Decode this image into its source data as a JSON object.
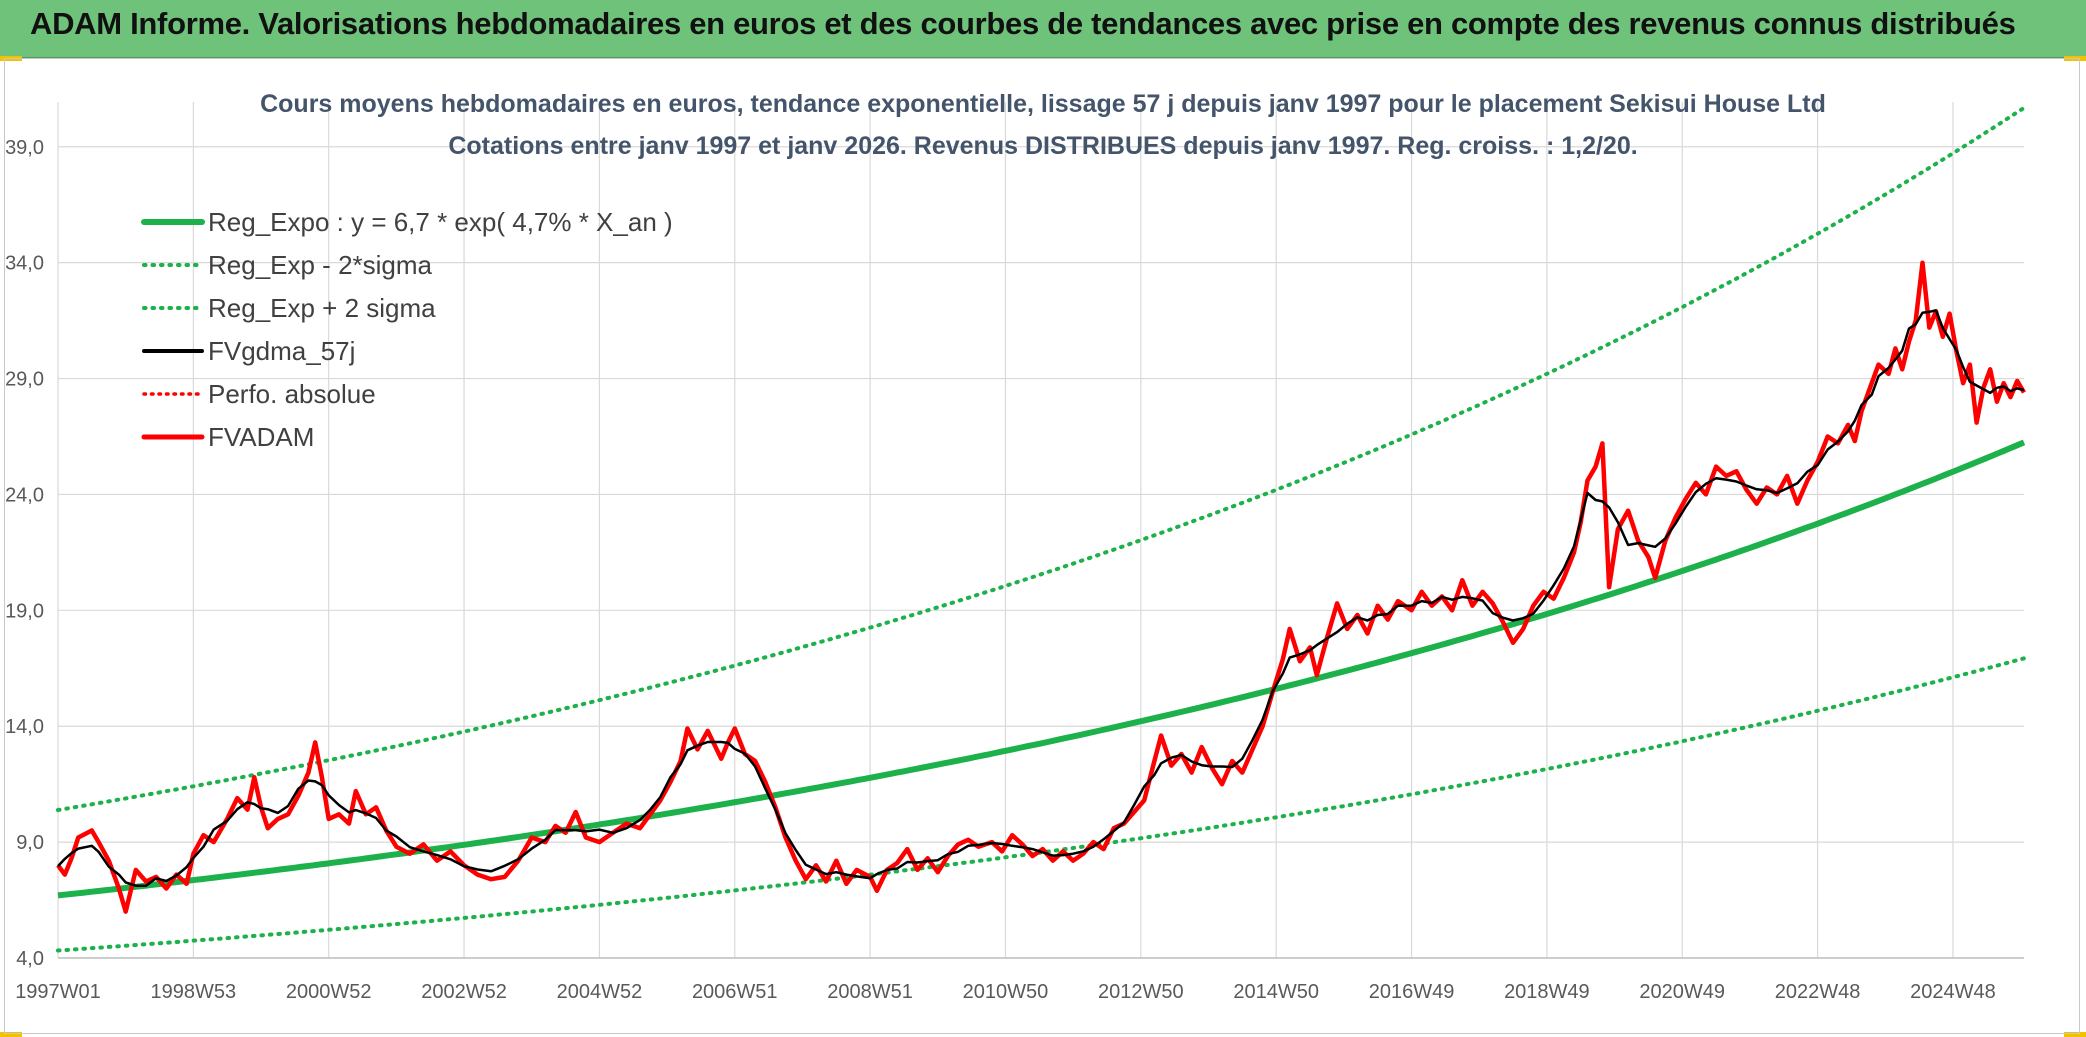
{
  "header": {
    "title": "ADAM Informe. Valorisations hebdomadaires en euros et des courbes de tendances avec prise en compte des revenus connus distribués"
  },
  "colors": {
    "header_bg": "#6fc27a",
    "trend": "#1db14b",
    "band": "#1db14b",
    "gdma": "#000000",
    "perf": "#ff0000",
    "fvadam": "#ff0000",
    "grid": "#d9d9d9",
    "title": "#44546a"
  },
  "chart_data": {
    "type": "line",
    "title": "Cours moyens hebdomadaires en euros, tendance exponentielle, lissage 57 j depuis janv 1997 pour le placement Sekisui House Ltd",
    "subtitle": "Cotations entre janv 1997 et janv 2026. Revenus DISTRIBUES depuis janv 1997. Reg. croiss. : 1,2/20.",
    "xlabel": "",
    "ylabel": "",
    "x_range": [
      1997.0,
      2026.05
    ],
    "ylim": [
      4.0,
      40.5
    ],
    "y_ticks": [
      "4,0",
      "9,0",
      "14,0",
      "19,0",
      "24,0",
      "29,0",
      "34,0",
      "39,0"
    ],
    "y_tick_values": [
      4,
      9,
      14,
      19,
      24,
      29,
      34,
      39
    ],
    "x_ticks": [
      "1997W01",
      "1998W53",
      "2000W52",
      "2002W52",
      "2004W52",
      "2006W51",
      "2008W51",
      "2010W50",
      "2012W50",
      "2014W50",
      "2016W49",
      "2018W49",
      "2020W49",
      "2022W48",
      "2024W48"
    ],
    "x_tick_values": [
      1997.0,
      1999.0,
      2001.0,
      2003.0,
      2005.0,
      2007.0,
      2009.0,
      2011.0,
      2013.0,
      2015.0,
      2017.0,
      2019.0,
      2021.0,
      2023.0,
      2025.0
    ],
    "grid": true,
    "legend_position": "top-left",
    "regression": {
      "a": 6.7,
      "rate": 0.047,
      "band_factor_low": 0.645,
      "band_factor_high": 1.55
    },
    "series": [
      {
        "name": "Reg_Expo : y = 6,7 * exp( 4,7% *  X_an )",
        "style": "solid-thick",
        "color": "#1db14b"
      },
      {
        "name": "Reg_Exp - 2*sigma",
        "style": "dotted",
        "color": "#1db14b"
      },
      {
        "name": "Reg_Exp + 2 sigma",
        "style": "dotted",
        "color": "#1db14b"
      },
      {
        "name": "FVgdma_57j",
        "style": "solid",
        "color": "#000000"
      },
      {
        "name": "Perfo. absolue",
        "style": "dotted",
        "color": "#ff0000"
      },
      {
        "name": "FVADAM",
        "style": "solid-thick",
        "color": "#ff0000",
        "points": [
          [
            1997.0,
            8.0
          ],
          [
            1997.1,
            7.6
          ],
          [
            1997.2,
            8.3
          ],
          [
            1997.3,
            9.2
          ],
          [
            1997.5,
            9.5
          ],
          [
            1997.6,
            9.0
          ],
          [
            1997.75,
            8.2
          ],
          [
            1997.9,
            7.0
          ],
          [
            1998.0,
            6.0
          ],
          [
            1998.15,
            7.8
          ],
          [
            1998.3,
            7.3
          ],
          [
            1998.45,
            7.5
          ],
          [
            1998.6,
            7.0
          ],
          [
            1998.75,
            7.6
          ],
          [
            1998.9,
            7.2
          ],
          [
            1999.0,
            8.5
          ],
          [
            1999.15,
            9.3
          ],
          [
            1999.3,
            9.0
          ],
          [
            1999.5,
            10.0
          ],
          [
            1999.65,
            10.9
          ],
          [
            1999.8,
            10.4
          ],
          [
            1999.9,
            11.8
          ],
          [
            2000.0,
            10.5
          ],
          [
            2000.1,
            9.6
          ],
          [
            2000.25,
            10.0
          ],
          [
            2000.4,
            10.2
          ],
          [
            2000.55,
            11.0
          ],
          [
            2000.7,
            12.0
          ],
          [
            2000.8,
            13.3
          ],
          [
            2000.9,
            11.8
          ],
          [
            2001.0,
            10.0
          ],
          [
            2001.15,
            10.2
          ],
          [
            2001.3,
            9.8
          ],
          [
            2001.4,
            11.2
          ],
          [
            2001.55,
            10.2
          ],
          [
            2001.7,
            10.5
          ],
          [
            2001.85,
            9.5
          ],
          [
            2002.0,
            8.8
          ],
          [
            2002.2,
            8.5
          ],
          [
            2002.4,
            8.9
          ],
          [
            2002.6,
            8.2
          ],
          [
            2002.8,
            8.6
          ],
          [
            2003.0,
            8.0
          ],
          [
            2003.2,
            7.6
          ],
          [
            2003.4,
            7.4
          ],
          [
            2003.6,
            7.5
          ],
          [
            2003.8,
            8.2
          ],
          [
            2004.0,
            9.2
          ],
          [
            2004.2,
            9.0
          ],
          [
            2004.35,
            9.7
          ],
          [
            2004.5,
            9.4
          ],
          [
            2004.65,
            10.3
          ],
          [
            2004.8,
            9.2
          ],
          [
            2005.0,
            9.0
          ],
          [
            2005.2,
            9.4
          ],
          [
            2005.4,
            9.8
          ],
          [
            2005.6,
            9.6
          ],
          [
            2005.75,
            10.2
          ],
          [
            2005.9,
            10.8
          ],
          [
            2006.05,
            11.6
          ],
          [
            2006.2,
            12.5
          ],
          [
            2006.3,
            13.9
          ],
          [
            2006.45,
            13.0
          ],
          [
            2006.6,
            13.8
          ],
          [
            2006.8,
            12.6
          ],
          [
            2006.9,
            13.3
          ],
          [
            2007.0,
            13.9
          ],
          [
            2007.15,
            12.8
          ],
          [
            2007.3,
            12.5
          ],
          [
            2007.45,
            11.6
          ],
          [
            2007.6,
            10.5
          ],
          [
            2007.75,
            9.2
          ],
          [
            2007.9,
            8.2
          ],
          [
            2008.05,
            7.4
          ],
          [
            2008.2,
            8.0
          ],
          [
            2008.35,
            7.3
          ],
          [
            2008.5,
            8.2
          ],
          [
            2008.65,
            7.2
          ],
          [
            2008.8,
            7.8
          ],
          [
            2009.0,
            7.5
          ],
          [
            2009.1,
            6.9
          ],
          [
            2009.25,
            7.8
          ],
          [
            2009.4,
            8.1
          ],
          [
            2009.55,
            8.7
          ],
          [
            2009.7,
            7.8
          ],
          [
            2009.85,
            8.3
          ],
          [
            2010.0,
            7.7
          ],
          [
            2010.15,
            8.4
          ],
          [
            2010.3,
            8.9
          ],
          [
            2010.45,
            9.1
          ],
          [
            2010.6,
            8.8
          ],
          [
            2010.8,
            9.0
          ],
          [
            2010.95,
            8.6
          ],
          [
            2011.1,
            9.3
          ],
          [
            2011.25,
            8.9
          ],
          [
            2011.4,
            8.4
          ],
          [
            2011.55,
            8.7
          ],
          [
            2011.7,
            8.2
          ],
          [
            2011.85,
            8.6
          ],
          [
            2012.0,
            8.2
          ],
          [
            2012.15,
            8.5
          ],
          [
            2012.3,
            9.0
          ],
          [
            2012.45,
            8.7
          ],
          [
            2012.6,
            9.6
          ],
          [
            2012.75,
            9.8
          ],
          [
            2012.9,
            10.3
          ],
          [
            2013.05,
            10.8
          ],
          [
            2013.2,
            12.5
          ],
          [
            2013.3,
            13.6
          ],
          [
            2013.45,
            12.3
          ],
          [
            2013.6,
            12.8
          ],
          [
            2013.75,
            12.0
          ],
          [
            2013.9,
            13.1
          ],
          [
            2014.05,
            12.2
          ],
          [
            2014.2,
            11.5
          ],
          [
            2014.35,
            12.5
          ],
          [
            2014.5,
            12.0
          ],
          [
            2014.65,
            13.0
          ],
          [
            2014.8,
            14.0
          ],
          [
            2014.95,
            15.5
          ],
          [
            2015.1,
            16.9
          ],
          [
            2015.2,
            18.2
          ],
          [
            2015.35,
            16.8
          ],
          [
            2015.5,
            17.4
          ],
          [
            2015.6,
            16.2
          ],
          [
            2015.75,
            17.8
          ],
          [
            2015.9,
            19.3
          ],
          [
            2016.05,
            18.2
          ],
          [
            2016.2,
            18.8
          ],
          [
            2016.35,
            18.0
          ],
          [
            2016.5,
            19.2
          ],
          [
            2016.65,
            18.6
          ],
          [
            2016.8,
            19.4
          ],
          [
            2017.0,
            19.0
          ],
          [
            2017.15,
            19.8
          ],
          [
            2017.3,
            19.2
          ],
          [
            2017.45,
            19.6
          ],
          [
            2017.6,
            19.0
          ],
          [
            2017.75,
            20.3
          ],
          [
            2017.9,
            19.2
          ],
          [
            2018.05,
            19.8
          ],
          [
            2018.2,
            19.3
          ],
          [
            2018.35,
            18.5
          ],
          [
            2018.5,
            17.6
          ],
          [
            2018.65,
            18.2
          ],
          [
            2018.8,
            19.2
          ],
          [
            2018.95,
            19.8
          ],
          [
            2019.1,
            19.5
          ],
          [
            2019.25,
            20.4
          ],
          [
            2019.4,
            21.5
          ],
          [
            2019.5,
            22.8
          ],
          [
            2019.6,
            24.6
          ],
          [
            2019.72,
            25.2
          ],
          [
            2019.82,
            26.2
          ],
          [
            2019.92,
            20.0
          ],
          [
            2020.05,
            22.5
          ],
          [
            2020.2,
            23.3
          ],
          [
            2020.35,
            22.0
          ],
          [
            2020.5,
            21.3
          ],
          [
            2020.6,
            20.4
          ],
          [
            2020.75,
            22.0
          ],
          [
            2020.9,
            23.0
          ],
          [
            2021.05,
            23.8
          ],
          [
            2021.2,
            24.5
          ],
          [
            2021.35,
            24.0
          ],
          [
            2021.5,
            25.2
          ],
          [
            2021.65,
            24.8
          ],
          [
            2021.8,
            25.0
          ],
          [
            2021.95,
            24.2
          ],
          [
            2022.1,
            23.6
          ],
          [
            2022.25,
            24.3
          ],
          [
            2022.4,
            24.0
          ],
          [
            2022.55,
            24.8
          ],
          [
            2022.7,
            23.6
          ],
          [
            2022.85,
            24.6
          ],
          [
            2023.0,
            25.4
          ],
          [
            2023.15,
            26.5
          ],
          [
            2023.3,
            26.2
          ],
          [
            2023.45,
            27.0
          ],
          [
            2023.55,
            26.3
          ],
          [
            2023.65,
            27.6
          ],
          [
            2023.8,
            28.8
          ],
          [
            2023.9,
            29.6
          ],
          [
            2024.05,
            29.2
          ],
          [
            2024.15,
            30.3
          ],
          [
            2024.25,
            29.4
          ],
          [
            2024.35,
            30.6
          ],
          [
            2024.45,
            31.5
          ],
          [
            2024.55,
            34.0
          ],
          [
            2024.65,
            31.2
          ],
          [
            2024.75,
            31.9
          ],
          [
            2024.85,
            30.8
          ],
          [
            2024.95,
            31.8
          ],
          [
            2025.05,
            30.2
          ],
          [
            2025.15,
            28.8
          ],
          [
            2025.25,
            29.6
          ],
          [
            2025.35,
            27.1
          ],
          [
            2025.45,
            28.6
          ],
          [
            2025.55,
            29.4
          ],
          [
            2025.65,
            28.0
          ],
          [
            2025.75,
            28.8
          ],
          [
            2025.85,
            28.2
          ],
          [
            2025.95,
            28.9
          ],
          [
            2026.05,
            28.4
          ]
        ]
      }
    ]
  }
}
